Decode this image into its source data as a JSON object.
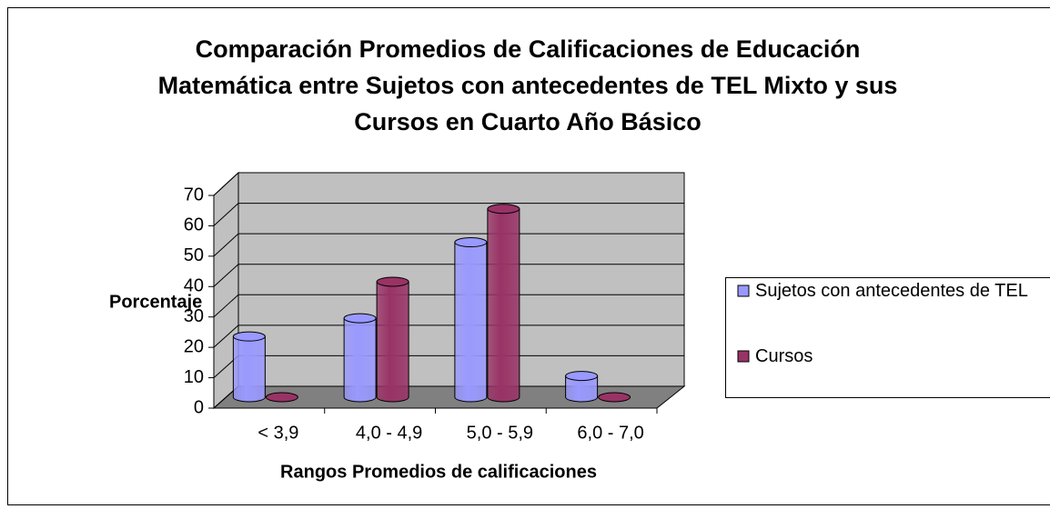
{
  "chart_data": {
    "type": "bar",
    "title": "Comparación Promedios de Calificaciones de Educación Matemática entre Sujetos con antecedentes de TEL Mixto y sus Cursos en Cuarto Año Básico",
    "x_label": "Rangos Promedios de calificaciones",
    "y_label": "Porcentaje",
    "categories": [
      "< 3,9",
      "4,0 - 4,9",
      "5,0 - 5,9",
      "6,0 - 7,0"
    ],
    "series": [
      {
        "name": "Sujetos con antecedentes de TEL",
        "color": "#9999ff",
        "values": [
          20,
          26,
          51,
          7
        ]
      },
      {
        "name": "Cursos",
        "color": "#993366",
        "values": [
          0,
          38,
          62,
          0
        ]
      }
    ],
    "ylim": [
      0,
      70
    ],
    "yticks": [
      0,
      10,
      20,
      30,
      40,
      50,
      60,
      70
    ],
    "grid": true,
    "legend": "right"
  }
}
